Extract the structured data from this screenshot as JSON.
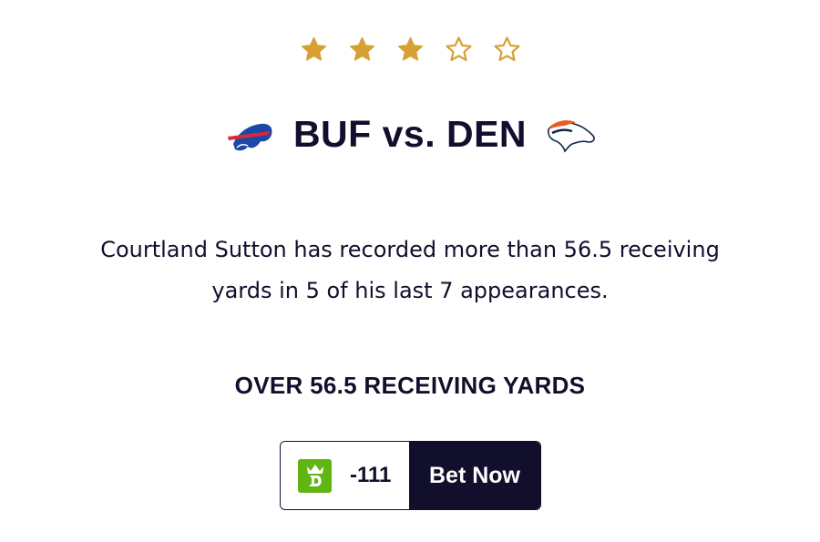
{
  "rating": {
    "value": 3,
    "max": 5,
    "color": "#d8a032"
  },
  "matchup": {
    "title": "BUF vs. DEN",
    "away_logo": "buffalo-bills-logo",
    "home_logo": "denver-broncos-logo"
  },
  "description": {
    "line1": "Courtland Sutton has recorded more than 56.5 receiving",
    "line2": "yards in 5 of his last 7 appearances."
  },
  "pick": {
    "label": "OVER 56.5 RECEIVING YARDS"
  },
  "bet": {
    "sportsbook_icon": "draftkings-icon",
    "sportsbook_color": "#61b510",
    "odds": "-111",
    "cta": "Bet Now",
    "cta_color": "#120f2d"
  }
}
